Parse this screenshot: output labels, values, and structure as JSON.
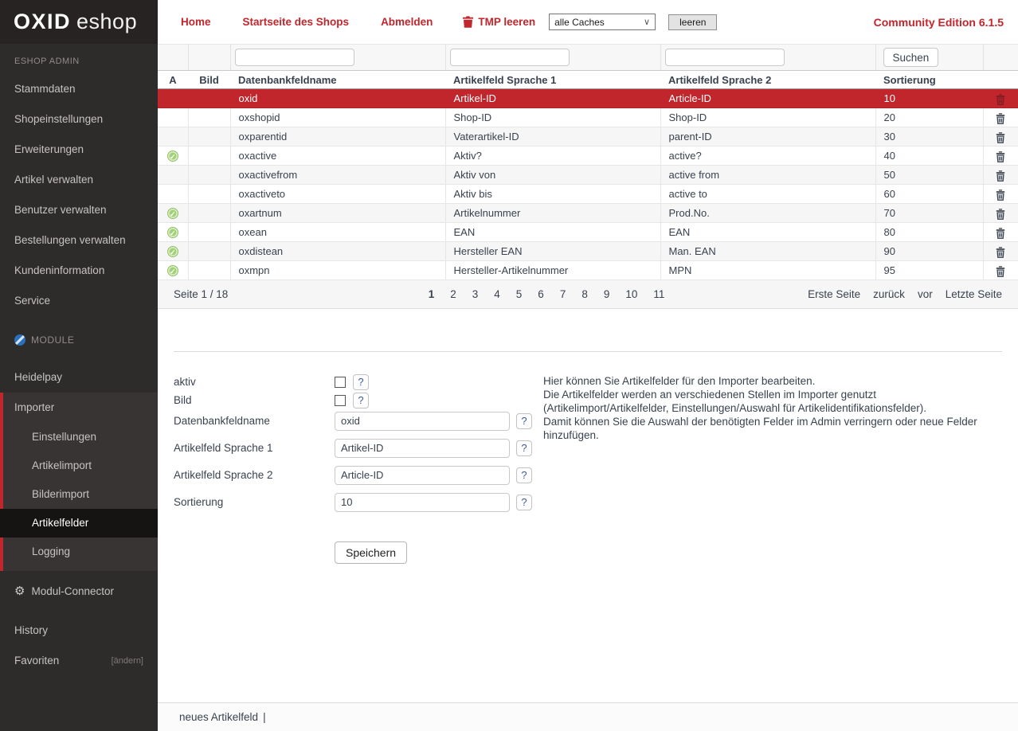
{
  "accent_color": "#c2262d",
  "header": {
    "logo_bold": "OXID",
    "logo_light": "eshop",
    "nav": {
      "home": "Home",
      "shop_start": "Startseite des Shops",
      "logout": "Abmelden"
    },
    "tmp": {
      "label": "TMP leeren",
      "select_value": "alle Caches",
      "clear_button": "leeren"
    },
    "edition": "Community Edition 6.1.5"
  },
  "icons": {
    "tmp_trash": "trash",
    "row_delete": "trash",
    "active_check": "✓",
    "module": "blue-circle",
    "connector": "⚙",
    "select_chevron": "∨"
  },
  "sidebar": {
    "caption": "ESHOP ADMIN",
    "main_items": [
      "Stammdaten",
      "Shopeinstellungen",
      "Erweiterungen",
      "Artikel verwalten",
      "Benutzer verwalten",
      "Bestellungen verwalten",
      "Kundeninformation",
      "Service"
    ],
    "module_caption": "MODULE",
    "heidelpay": "Heidelpay",
    "importer": "Importer",
    "importer_children": [
      "Einstellungen",
      "Artikelimport",
      "Bilderimport",
      "Artikelfelder",
      "Logging"
    ],
    "active_child": "Artikelfelder",
    "connector": "Modul-Connector",
    "history": "History",
    "favorites": "Favoriten",
    "favorites_edit": "[ändern]"
  },
  "table": {
    "search_button": "Suchen",
    "columns": {
      "a": "A",
      "bild": "Bild",
      "db": "Datenbankfeldname",
      "lang1": "Artikelfeld Sprache 1",
      "lang2": "Artikelfeld Sprache 2",
      "sort": "Sortierung"
    },
    "filter_values": {
      "db": "",
      "lang1": "",
      "lang2": ""
    },
    "rows": [
      {
        "active": false,
        "selected": true,
        "db": "oxid",
        "lang1": "Artikel-ID",
        "lang2": "Article-ID",
        "sort": "10"
      },
      {
        "active": false,
        "selected": false,
        "db": "oxshopid",
        "lang1": "Shop-ID",
        "lang2": "Shop-ID",
        "sort": "20"
      },
      {
        "active": false,
        "selected": false,
        "db": "oxparentid",
        "lang1": "Vaterartikel-ID",
        "lang2": "parent-ID",
        "sort": "30"
      },
      {
        "active": true,
        "selected": false,
        "db": "oxactive",
        "lang1": "Aktiv?",
        "lang2": "active?",
        "sort": "40"
      },
      {
        "active": false,
        "selected": false,
        "db": "oxactivefrom",
        "lang1": "Aktiv von",
        "lang2": "active from",
        "sort": "50"
      },
      {
        "active": false,
        "selected": false,
        "db": "oxactiveto",
        "lang1": "Aktiv bis",
        "lang2": "active to",
        "sort": "60"
      },
      {
        "active": true,
        "selected": false,
        "db": "oxartnum",
        "lang1": "Artikelnummer",
        "lang2": "Prod.No.",
        "sort": "70"
      },
      {
        "active": true,
        "selected": false,
        "db": "oxean",
        "lang1": "EAN",
        "lang2": "EAN",
        "sort": "80"
      },
      {
        "active": true,
        "selected": false,
        "db": "oxdistean",
        "lang1": "Hersteller EAN",
        "lang2": "Man. EAN",
        "sort": "90"
      },
      {
        "active": true,
        "selected": false,
        "db": "oxmpn",
        "lang1": "Hersteller-Artikelnummer",
        "lang2": "MPN",
        "sort": "95"
      }
    ]
  },
  "pagination": {
    "page_info": "Seite 1 / 18",
    "pages": [
      "1",
      "2",
      "3",
      "4",
      "5",
      "6",
      "7",
      "8",
      "9",
      "10",
      "11"
    ],
    "current_page": "1",
    "first": "Erste Seite",
    "back": "zurück",
    "forward": "vor",
    "last": "Letzte Seite"
  },
  "form": {
    "help_icon": "?",
    "fields": {
      "aktiv_label": "aktiv",
      "bild_label": "Bild",
      "db_label": "Datenbankfeldname",
      "db_value": "oxid",
      "lang1_label": "Artikelfeld Sprache 1",
      "lang1_value": "Artikel-ID",
      "lang2_label": "Artikelfeld Sprache 2",
      "lang2_value": "Article-ID",
      "sort_label": "Sortierung",
      "sort_value": "10"
    },
    "save_button": "Speichern",
    "help_lines": [
      "Hier können Sie Artikelfelder für den Importer bearbeiten.",
      "Die Artikelfelder werden an verschiedenen Stellen im Importer genutzt (Artikelimport/Artikelfelder, Einstellungen/Auswahl für Artikelidentifikationsfelder).",
      "Damit können Sie die Auswahl der benötigten Felder im Admin verringern oder neue Felder hinzufügen."
    ]
  },
  "footer": {
    "new_link": "neues Artikelfeld",
    "separator": "|"
  }
}
